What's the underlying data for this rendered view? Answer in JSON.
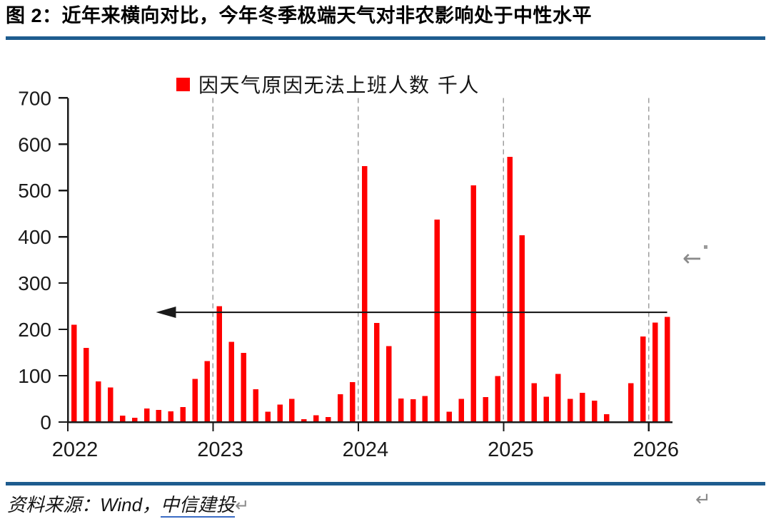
{
  "figure": {
    "title": "图 2：近年来横向对比，今年冬季极端天气对非农影响处于中性水平",
    "accent_color": "#1E5C8F"
  },
  "chart_data": {
    "type": "bar",
    "legend_label": "因天气原因无法上班人数 千人",
    "bar_color": "#FF0000",
    "ylim": [
      0,
      700
    ],
    "y_ticks": [
      0,
      100,
      200,
      300,
      400,
      500,
      600,
      700
    ],
    "x_year_ticks": [
      "2022",
      "2023",
      "2024",
      "2025",
      "2026"
    ],
    "grid": "vertical dashed gridlines at Jan 2023/2024/2025/2026, no horizontal grid",
    "legend_position": "top-center",
    "x": [
      "2022-01",
      "2022-02",
      "2022-03",
      "2022-04",
      "2022-05",
      "2022-06",
      "2022-07",
      "2022-08",
      "2022-09",
      "2022-10",
      "2022-11",
      "2022-12",
      "2023-01",
      "2023-02",
      "2023-03",
      "2023-04",
      "2023-05",
      "2023-06",
      "2023-07",
      "2023-08",
      "2023-09",
      "2023-10",
      "2023-11",
      "2023-12",
      "2024-01",
      "2024-02",
      "2024-03",
      "2024-04",
      "2024-05",
      "2024-06",
      "2024-07",
      "2024-08",
      "2024-09",
      "2024-10",
      "2024-11",
      "2024-12",
      "2025-01",
      "2025-02",
      "2025-03",
      "2025-04",
      "2025-05",
      "2025-06",
      "2025-07",
      "2025-08",
      "2025-09",
      "2025-10",
      "2025-11",
      "2025-12",
      "2026-01",
      "2026-02"
    ],
    "values": [
      210,
      160,
      88,
      75,
      14,
      9,
      29,
      26,
      23,
      32,
      93,
      132,
      250,
      173,
      149,
      71,
      22,
      38,
      50,
      6,
      15,
      11,
      60,
      86,
      553,
      214,
      164,
      51,
      49,
      56,
      437,
      22,
      50,
      511,
      54,
      99,
      573,
      403,
      84,
      55,
      104,
      50,
      63,
      46,
      17,
      0,
      84,
      185,
      215,
      227
    ],
    "annotation_arrow": {
      "type": "arrow",
      "direction": "left",
      "level": 237,
      "tail_month": "2026-02",
      "tip_month": "2022-08"
    }
  },
  "source": {
    "prefix": "资料来源：",
    "vendor": "Wind",
    "comma": "，",
    "publisher": "中信建投",
    "line_break_mark": "↵"
  },
  "marks": {
    "mid_right_return": "←",
    "bottom_right_return": "↵"
  }
}
